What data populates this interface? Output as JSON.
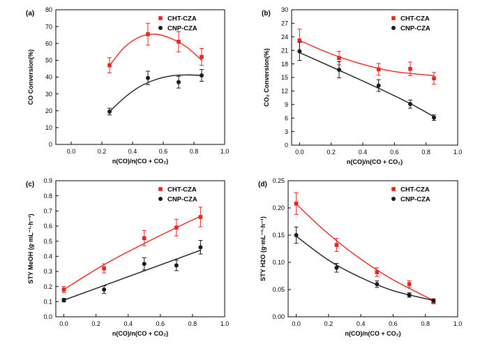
{
  "chart_data": [
    {
      "type": "scatter",
      "panel_label": "(a)",
      "xlabel": "n(CO)/n(CO + CO₂)",
      "ylabel": "CO Conversion(%)",
      "xlim": [
        -0.1,
        1.0
      ],
      "ylim": [
        0,
        80
      ],
      "xticks": [
        0.0,
        0.2,
        0.4,
        0.6,
        0.8,
        1.0
      ],
      "xtick_labels": [
        "0.0",
        "0.2",
        "0.4",
        "0.6",
        "0.8",
        "1.0"
      ],
      "yticks": [
        0,
        10,
        20,
        30,
        40,
        50,
        60,
        70,
        80
      ],
      "ytick_labels": [
        "0",
        "10",
        "20",
        "30",
        "40",
        "50",
        "60",
        "70",
        "80"
      ],
      "legend_position": "top-right",
      "series": [
        {
          "name": "CHT-CZA",
          "color": "#e8251f",
          "marker": "square",
          "x": [
            0.25,
            0.5,
            0.7,
            0.85
          ],
          "y": [
            47,
            65.5,
            61,
            52
          ],
          "err": [
            4.5,
            6.5,
            6,
            5
          ],
          "fit": [
            [
              0.25,
              47
            ],
            [
              0.35,
              58
            ],
            [
              0.45,
              64
            ],
            [
              0.55,
              65.5
            ],
            [
              0.65,
              63
            ],
            [
              0.75,
              58
            ],
            [
              0.85,
              50
            ]
          ]
        },
        {
          "name": "CNP-CZA",
          "color": "#1a1a1a",
          "marker": "circle",
          "x": [
            0.25,
            0.5,
            0.7,
            0.85
          ],
          "y": [
            19.5,
            39.5,
            37,
            41
          ],
          "err": [
            2,
            4,
            3.5,
            3.5
          ],
          "fit": [
            [
              0.25,
              19.5
            ],
            [
              0.35,
              28
            ],
            [
              0.45,
              34.5
            ],
            [
              0.55,
              38.5
            ],
            [
              0.65,
              40.7
            ],
            [
              0.75,
              41.3
            ],
            [
              0.85,
              41
            ]
          ]
        }
      ]
    },
    {
      "type": "scatter",
      "panel_label": "(b)",
      "xlabel": "n(CO)/n(CO + CO₂)",
      "ylabel": "CO₂ Conversion(%)",
      "xlim": [
        -0.05,
        1.0
      ],
      "ylim": [
        0,
        30
      ],
      "xticks": [
        0.0,
        0.2,
        0.4,
        0.6,
        0.8,
        1.0
      ],
      "xtick_labels": [
        "0.0",
        "0.2",
        "0.4",
        "0.6",
        "0.8",
        "1.0"
      ],
      "yticks": [
        0,
        3,
        6,
        9,
        12,
        15,
        18,
        21,
        24,
        27,
        30
      ],
      "ytick_labels": [
        "0",
        "3",
        "6",
        "9",
        "12",
        "15",
        "18",
        "21",
        "24",
        "27",
        "30"
      ],
      "legend_position": "top-right",
      "series": [
        {
          "name": "CHT-CZA",
          "color": "#e8251f",
          "marker": "square",
          "x": [
            0.0,
            0.25,
            0.5,
            0.7,
            0.85
          ],
          "y": [
            23.2,
            19.3,
            16.8,
            16.9,
            14.8
          ],
          "err": [
            2.5,
            1.5,
            1.3,
            1.5,
            1.3
          ],
          "fit": [
            [
              0.0,
              23.2
            ],
            [
              0.2,
              20.2
            ],
            [
              0.4,
              17.9
            ],
            [
              0.6,
              16.3
            ],
            [
              0.85,
              15.4
            ]
          ]
        },
        {
          "name": "CNP-CZA",
          "color": "#1a1a1a",
          "marker": "circle",
          "x": [
            0.0,
            0.25,
            0.5,
            0.7,
            0.85
          ],
          "y": [
            20.8,
            16.7,
            13.2,
            9.1,
            6.1
          ],
          "err": [
            2,
            1.8,
            1.3,
            0.9,
            0.6
          ],
          "fit": [
            [
              0.0,
              20.5
            ],
            [
              0.25,
              16.6
            ],
            [
              0.5,
              12.6
            ],
            [
              0.7,
              9.2
            ],
            [
              0.85,
              6.3
            ]
          ]
        }
      ]
    },
    {
      "type": "scatter",
      "panel_label": "(c)",
      "xlabel": "n(CO)/n(CO + CO₂)",
      "ylabel": "STY MeOH (g·mL⁻¹·h⁻¹)",
      "xlim": [
        -0.05,
        1.0
      ],
      "ylim": [
        0,
        0.9
      ],
      "xticks": [
        0.0,
        0.2,
        0.4,
        0.6,
        0.8,
        1.0
      ],
      "xtick_labels": [
        "0.0",
        "0.2",
        "0.4",
        "0.6",
        "0.8",
        "1.0"
      ],
      "yticks": [
        0,
        0.1,
        0.2,
        0.3,
        0.4,
        0.5,
        0.6,
        0.7,
        0.8,
        0.9
      ],
      "ytick_labels": [
        "0.0",
        "0.1",
        "0.2",
        "0.3",
        "0.4",
        "0.5",
        "0.6",
        "0.7",
        "0.8",
        "0.9"
      ],
      "legend_position": "top-right",
      "series": [
        {
          "name": "CHT-CZA",
          "color": "#e8251f",
          "marker": "square",
          "x": [
            0.0,
            0.25,
            0.5,
            0.7,
            0.85
          ],
          "y": [
            0.18,
            0.32,
            0.52,
            0.59,
            0.66
          ],
          "err": [
            0.02,
            0.03,
            0.05,
            0.055,
            0.065
          ],
          "fit": [
            [
              0.0,
              0.18
            ],
            [
              0.25,
              0.345
            ],
            [
              0.5,
              0.485
            ],
            [
              0.7,
              0.59
            ],
            [
              0.85,
              0.665
            ]
          ]
        },
        {
          "name": "CNP-CZA",
          "color": "#1a1a1a",
          "marker": "circle",
          "x": [
            0.0,
            0.25,
            0.5,
            0.7,
            0.85
          ],
          "y": [
            0.11,
            0.18,
            0.35,
            0.34,
            0.46
          ],
          "err": [
            0.012,
            0.025,
            0.04,
            0.035,
            0.045
          ],
          "fit": [
            [
              0.0,
              0.11
            ],
            [
              0.85,
              0.44
            ]
          ]
        }
      ]
    },
    {
      "type": "scatter",
      "panel_label": "(d)",
      "xlabel": "n(CO)/n(CO + CO₂)",
      "ylabel": "STY H2O (g·mL⁻¹·h⁻¹)",
      "xlim": [
        -0.05,
        1.0
      ],
      "ylim": [
        0,
        0.25
      ],
      "xticks": [
        0.0,
        0.2,
        0.4,
        0.6,
        0.8,
        1.0
      ],
      "xtick_labels": [
        "0.0",
        "0.2",
        "0.4",
        "0.6",
        "0.8",
        "1.0"
      ],
      "yticks": [
        0,
        0.05,
        0.1,
        0.15,
        0.2,
        0.25
      ],
      "ytick_labels": [
        "0.00",
        "0.05",
        "0.10",
        "0.15",
        "0.20",
        "0.25"
      ],
      "legend_position": "top-right",
      "series": [
        {
          "name": "CHT-CZA",
          "color": "#e8251f",
          "marker": "square",
          "x": [
            0.0,
            0.25,
            0.5,
            0.7,
            0.85
          ],
          "y": [
            0.208,
            0.132,
            0.082,
            0.06,
            0.027
          ],
          "err": [
            0.02,
            0.012,
            0.008,
            0.006,
            0.003
          ],
          "fit": [
            [
              0.0,
              0.207
            ],
            [
              0.2,
              0.152
            ],
            [
              0.4,
              0.106
            ],
            [
              0.6,
              0.068
            ],
            [
              0.85,
              0.03
            ]
          ]
        },
        {
          "name": "CNP-CZA",
          "color": "#1a1a1a",
          "marker": "circle",
          "x": [
            0.0,
            0.25,
            0.5,
            0.7,
            0.85
          ],
          "y": [
            0.15,
            0.09,
            0.06,
            0.04,
            0.03
          ],
          "err": [
            0.015,
            0.008,
            0.006,
            0.004,
            0.003
          ],
          "fit": [
            [
              0.0,
              0.148
            ],
            [
              0.2,
              0.104
            ],
            [
              0.4,
              0.072
            ],
            [
              0.6,
              0.048
            ],
            [
              0.85,
              0.03
            ]
          ]
        }
      ]
    }
  ]
}
